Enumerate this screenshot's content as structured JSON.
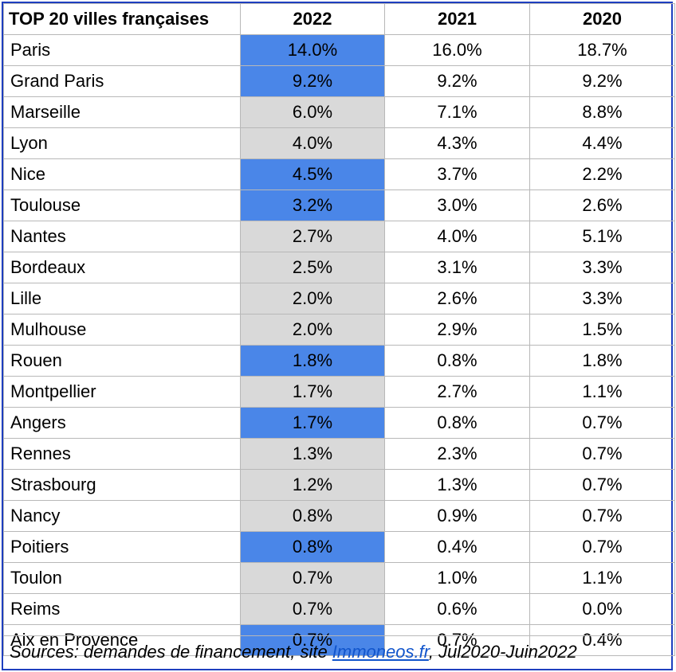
{
  "chart_data": {
    "type": "table",
    "columns": [
      "TOP 20 villes françaises",
      "2022",
      "2021",
      "2020"
    ],
    "rows": [
      {
        "city": "Paris",
        "y2022": "14.0%",
        "y2021": "16.0%",
        "y2020": "18.7%",
        "highlight": "blue"
      },
      {
        "city": "Grand Paris",
        "y2022": "9.2%",
        "y2021": "9.2%",
        "y2020": "9.2%",
        "highlight": "blue"
      },
      {
        "city": "Marseille",
        "y2022": "6.0%",
        "y2021": "7.1%",
        "y2020": "8.8%",
        "highlight": "gray"
      },
      {
        "city": "Lyon",
        "y2022": "4.0%",
        "y2021": "4.3%",
        "y2020": "4.4%",
        "highlight": "gray"
      },
      {
        "city": "Nice",
        "y2022": "4.5%",
        "y2021": "3.7%",
        "y2020": "2.2%",
        "highlight": "blue"
      },
      {
        "city": "Toulouse",
        "y2022": "3.2%",
        "y2021": "3.0%",
        "y2020": "2.6%",
        "highlight": "blue"
      },
      {
        "city": "Nantes",
        "y2022": "2.7%",
        "y2021": "4.0%",
        "y2020": "5.1%",
        "highlight": "gray"
      },
      {
        "city": "Bordeaux",
        "y2022": "2.5%",
        "y2021": "3.1%",
        "y2020": "3.3%",
        "highlight": "gray"
      },
      {
        "city": "Lille",
        "y2022": "2.0%",
        "y2021": "2.6%",
        "y2020": "3.3%",
        "highlight": "gray"
      },
      {
        "city": "Mulhouse",
        "y2022": "2.0%",
        "y2021": "2.9%",
        "y2020": "1.5%",
        "highlight": "gray"
      },
      {
        "city": "Rouen",
        "y2022": "1.8%",
        "y2021": "0.8%",
        "y2020": "1.8%",
        "highlight": "blue"
      },
      {
        "city": "Montpellier",
        "y2022": "1.7%",
        "y2021": "2.7%",
        "y2020": "1.1%",
        "highlight": "gray"
      },
      {
        "city": "Angers",
        "y2022": "1.7%",
        "y2021": "0.8%",
        "y2020": "0.7%",
        "highlight": "blue"
      },
      {
        "city": "Rennes",
        "y2022": "1.3%",
        "y2021": "2.3%",
        "y2020": "0.7%",
        "highlight": "gray"
      },
      {
        "city": "Strasbourg",
        "y2022": "1.2%",
        "y2021": "1.3%",
        "y2020": "0.7%",
        "highlight": "gray"
      },
      {
        "city": "Nancy",
        "y2022": "0.8%",
        "y2021": "0.9%",
        "y2020": "0.7%",
        "highlight": "gray"
      },
      {
        "city": "Poitiers",
        "y2022": "0.8%",
        "y2021": "0.4%",
        "y2020": "0.7%",
        "highlight": "blue"
      },
      {
        "city": "Toulon",
        "y2022": "0.7%",
        "y2021": "1.0%",
        "y2020": "1.1%",
        "highlight": "gray"
      },
      {
        "city": "Reims",
        "y2022": "0.7%",
        "y2021": "0.6%",
        "y2020": "0.0%",
        "highlight": "gray"
      },
      {
        "city": "Aix en Provence",
        "y2022": "0.7%",
        "y2021": "0.7%",
        "y2020": "0.4%",
        "highlight": "blue"
      }
    ],
    "footer": {
      "prefix": "Sources: demandes de financement, site ",
      "link": "Immoneos.fr",
      "suffix": ", Jul2020-Juin2022"
    },
    "colors": {
      "highlight_blue": "#4a86e8",
      "highlight_gray": "#d9d9d9",
      "border": "#1e3fbf",
      "link": "#1155cc"
    }
  }
}
